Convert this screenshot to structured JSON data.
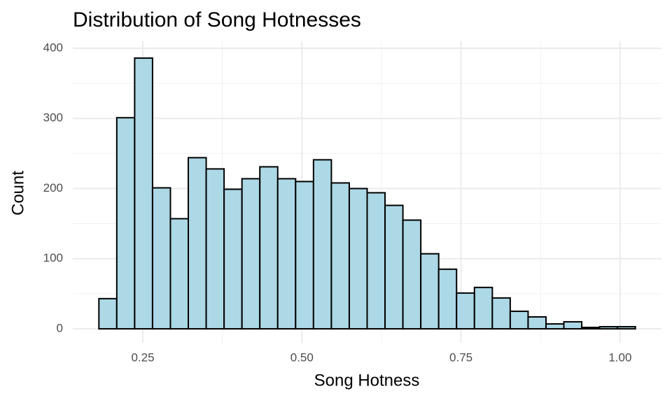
{
  "chart_data": {
    "type": "histogram",
    "title": "Distribution of Song Hotnesses",
    "x_label": "Song Hotness",
    "y_label": "Count",
    "bins": [
      0.181,
      0.2091,
      0.2372,
      0.2653,
      0.2934,
      0.3215,
      0.3496,
      0.3777,
      0.4058,
      0.4339,
      0.462,
      0.4901,
      0.5182,
      0.5463,
      0.5744,
      0.6025,
      0.6306,
      0.6587,
      0.6868,
      0.7149,
      0.743,
      0.7711,
      0.7992,
      0.8273,
      0.8554,
      0.8835,
      0.9116,
      0.9397,
      0.9678,
      0.9959,
      1.024
    ],
    "values": [
      43,
      301,
      386,
      201,
      157,
      244,
      228,
      199,
      214,
      231,
      214,
      210,
      241,
      208,
      200,
      194,
      176,
      155,
      107,
      85,
      51,
      59,
      44,
      25,
      17,
      7,
      10,
      2,
      3,
      3
    ],
    "color": "#add8e6",
    "edge_color": "#000000",
    "xlim": [
      0.14,
      1.065
    ],
    "ylim": [
      -20,
      410
    ],
    "xticks": [
      0.25,
      {
        "value": 0.5,
        "label": "0.50"
      },
      0.75,
      {
        "value": 1,
        "label": "1.00"
      }
    ],
    "yticks": [
      0,
      100,
      200,
      300,
      400
    ],
    "x_minor_ticks": [
      0.375,
      0.625,
      0.875
    ],
    "y_minor_ticks": [
      50,
      150,
      250,
      350
    ],
    "grid": true
  }
}
